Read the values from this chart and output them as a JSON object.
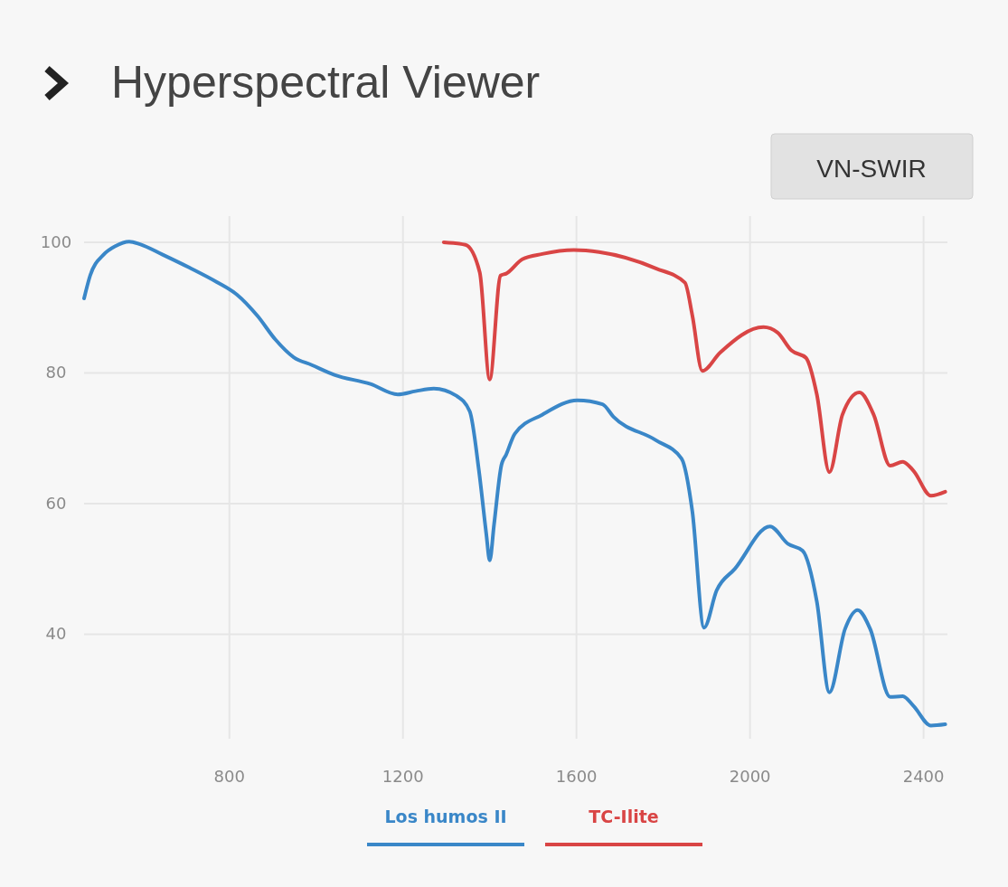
{
  "chart_data": {
    "type": "line",
    "title": "Hyperspectral Viewer",
    "annotations": [
      "VN-SWIR"
    ],
    "xlim": [
      465,
      2455
    ],
    "xticks": [
      800,
      1200,
      1600,
      2000,
      2400
    ],
    "ylim": [
      24,
      104
    ],
    "yticks": [
      40,
      60,
      80,
      100
    ],
    "grid": true,
    "legend": "bottom",
    "marker": "none",
    "line_style": "solid",
    "series": [
      {
        "name": "Los humos II",
        "color": "#3a87c8",
        "x": [
          465,
          479,
          510,
          537,
          569,
          594,
          646,
          708,
          771,
          817,
          865,
          906,
          948,
          990,
          1042,
          1125,
          1188,
          1229,
          1271,
          1323,
          1354,
          1375,
          1392,
          1400,
          1410,
          1427,
          1438,
          1458,
          1521,
          1602,
          1660,
          1685,
          1783,
          1842,
          1867,
          1894,
          1923,
          1965,
          2046,
          2088,
          2121,
          2154,
          2183,
          2219,
          2248,
          2277,
          2323,
          2352,
          2377,
          2417,
          2450
        ],
        "values": [
          91.4,
          94.9,
          98.1,
          99.4,
          100.1,
          99.7,
          98.1,
          96.1,
          93.9,
          92.0,
          88.7,
          85.1,
          82.4,
          81.2,
          79.7,
          78.3,
          76.7,
          77.2,
          77.6,
          76.5,
          74.1,
          65.1,
          55.4,
          51.3,
          56.8,
          65.9,
          67.5,
          70.7,
          73.6,
          75.8,
          75.2,
          73.3,
          69.7,
          66.9,
          58.8,
          41.0,
          46.7,
          50.0,
          56.5,
          53.8,
          52.8,
          45.0,
          31.1,
          40.8,
          43.7,
          40.8,
          30.4,
          30.5,
          29.0,
          26.0,
          26.2
        ]
      },
      {
        "name": "TC-Ilite",
        "color": "#d94545",
        "x": [
          1294,
          1344,
          1377,
          1400,
          1425,
          1438,
          1475,
          1521,
          1594,
          1652,
          1783,
          1850,
          1867,
          1890,
          1931,
          2031,
          2063,
          2096,
          2129,
          2154,
          2183,
          2213,
          2252,
          2285,
          2323,
          2352,
          2377,
          2417,
          2450
        ],
        "values": [
          100.0,
          99.6,
          95.4,
          79.0,
          94.9,
          95.2,
          97.4,
          98.2,
          98.8,
          98.5,
          96.0,
          93.8,
          88.8,
          80.3,
          83.1,
          87.0,
          86.2,
          83.4,
          82.3,
          76.7,
          64.8,
          73.6,
          77.0,
          73.6,
          65.8,
          66.4,
          65.0,
          61.2,
          61.8
        ]
      }
    ]
  }
}
